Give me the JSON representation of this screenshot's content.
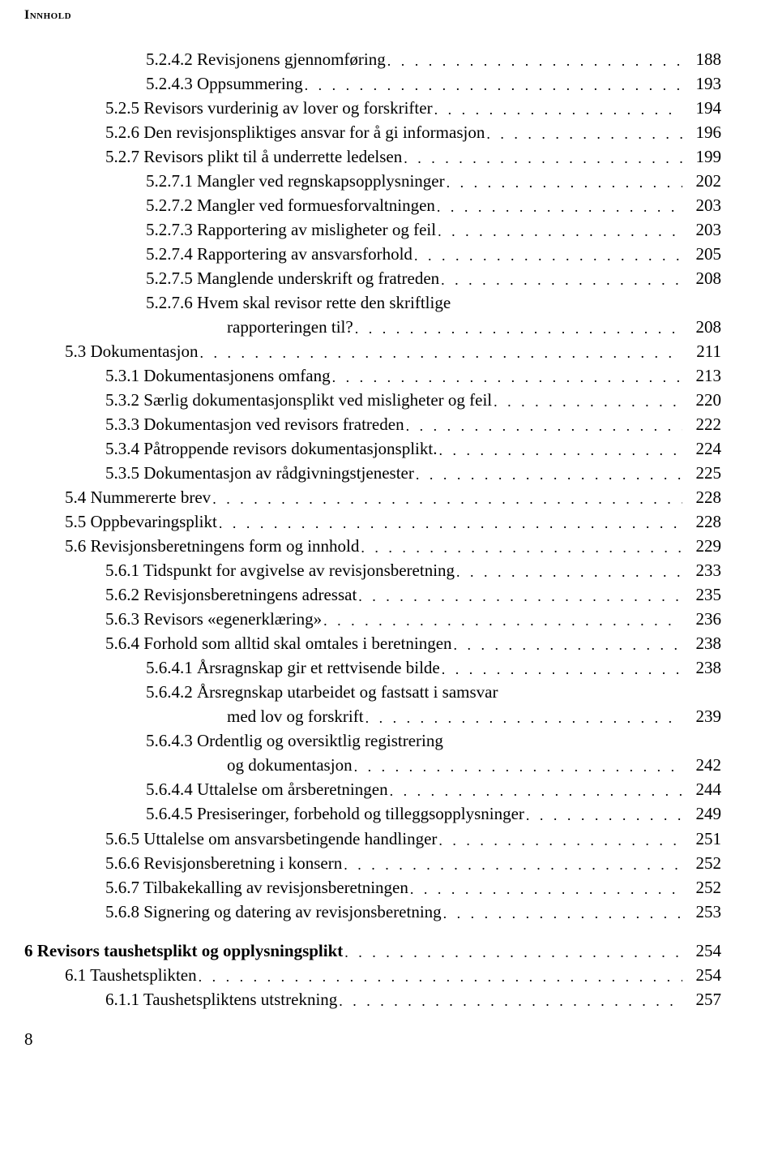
{
  "running_head": "Innhold",
  "page_number": "8",
  "style": {
    "background_color": "#ffffff",
    "text_color": "#000000",
    "font_family": "Garamond, Georgia, Times New Roman, serif",
    "body_fontsize_pt": 16,
    "heading_fontsize_pt": 12,
    "line_height": 1.43,
    "dot_leader_char": "."
  },
  "entries": [
    {
      "indent": 3,
      "label": "5.2.4.2 Revisjonens gjennomføring",
      "page": "188"
    },
    {
      "indent": 3,
      "label": "5.2.4.3 Oppsummering",
      "page": "193"
    },
    {
      "indent": 2,
      "label": "5.2.5 Revisors vurderinig av lover og forskrifter",
      "page": "194"
    },
    {
      "indent": 2,
      "label": "5.2.6 Den revisjonspliktiges ansvar for å gi informasjon",
      "page": "196"
    },
    {
      "indent": 2,
      "label": "5.2.7 Revisors plikt til å underrette ledelsen",
      "page": "199"
    },
    {
      "indent": 3,
      "label": "5.2.7.1 Mangler ved regnskapsopplysninger",
      "page": "202"
    },
    {
      "indent": 3,
      "label": "5.2.7.2 Mangler ved formuesforvaltningen",
      "page": "203"
    },
    {
      "indent": 3,
      "label": "5.2.7.3 Rapportering av misligheter og feil",
      "page": "203"
    },
    {
      "indent": 3,
      "label": "5.2.7.4 Rapportering av ansvarsforhold",
      "page": "205"
    },
    {
      "indent": 3,
      "label": "5.2.7.5 Manglende underskrift og fratreden",
      "page": "208"
    },
    {
      "indent": 3,
      "label": "5.2.7.6 Hvem skal revisor rette den skriftlige",
      "wrap": true
    },
    {
      "indent": 5,
      "label": "rapporteringen til?",
      "page": "208"
    },
    {
      "indent": 1,
      "label": "5.3  Dokumentasjon",
      "page": "211"
    },
    {
      "indent": 2,
      "label": "5.3.1 Dokumentasjonens omfang",
      "page": "213"
    },
    {
      "indent": 2,
      "label": "5.3.2 Særlig dokumentasjonsplikt ved misligheter og feil",
      "page": "220"
    },
    {
      "indent": 2,
      "label": "5.3.3 Dokumentasjon ved revisors fratreden",
      "page": "222"
    },
    {
      "indent": 2,
      "label": "5.3.4 Påtroppende revisors dokumentasjonsplikt.",
      "page": "224"
    },
    {
      "indent": 2,
      "label": "5.3.5 Dokumentasjon av rådgivningstjenester",
      "page": "225"
    },
    {
      "indent": 1,
      "label": "5.4  Nummererte brev",
      "page": "228"
    },
    {
      "indent": 1,
      "label": "5.5  Oppbevaringsplikt",
      "page": "228"
    },
    {
      "indent": 1,
      "label": "5.6  Revisjonsberetningens form og innhold",
      "page": "229"
    },
    {
      "indent": 2,
      "label": "5.6.1 Tidspunkt for avgivelse av revisjonsberetning",
      "page": "233"
    },
    {
      "indent": 2,
      "label": "5.6.2 Revisjonsberetningens adressat",
      "page": "235"
    },
    {
      "indent": 2,
      "label": "5.6.3 Revisors «egenerklæring»",
      "page": "236"
    },
    {
      "indent": 2,
      "label": "5.6.4 Forhold som alltid skal omtales i beretningen",
      "page": "238"
    },
    {
      "indent": 3,
      "label": "5.6.4.1 Årsragnskap gir et rettvisende bilde",
      "page": "238"
    },
    {
      "indent": 3,
      "label": "5.6.4.2 Årsregnskap utarbeidet og fastsatt i samsvar",
      "wrap": true
    },
    {
      "indent": 5,
      "label": "med lov og forskrift",
      "page": "239"
    },
    {
      "indent": 3,
      "label": "5.6.4.3 Ordentlig og oversiktlig registrering",
      "wrap": true
    },
    {
      "indent": 5,
      "label": "og dokumentasjon",
      "page": "242"
    },
    {
      "indent": 3,
      "label": "5.6.4.4 Uttalelse om årsberetningen",
      "page": "244"
    },
    {
      "indent": 3,
      "label": "5.6.4.5 Presiseringer, forbehold og tilleggsopplysninger",
      "page": "249"
    },
    {
      "indent": 2,
      "label": "5.6.5 Uttalelse om ansvarsbetingende handlinger",
      "page": "251"
    },
    {
      "indent": 2,
      "label": "5.6.6 Revisjonsberetning i konsern",
      "page": "252"
    },
    {
      "indent": 2,
      "label": "5.6.7 Tilbakekalling av revisjonsberetningen",
      "page": "252"
    },
    {
      "indent": 2,
      "label": "5.6.8 Signering og datering av revisjonsberetning",
      "page": "253"
    },
    {
      "spacer": true
    },
    {
      "indent": 0,
      "label": "6 Revisors taushetsplikt og opplysningsplikt",
      "page": "254",
      "bold": true
    },
    {
      "indent": 1,
      "label": "6.1  Taushetsplikten",
      "page": "254"
    },
    {
      "indent": 2,
      "label": "6.1.1 Taushetspliktens utstrekning",
      "page": "257"
    }
  ]
}
